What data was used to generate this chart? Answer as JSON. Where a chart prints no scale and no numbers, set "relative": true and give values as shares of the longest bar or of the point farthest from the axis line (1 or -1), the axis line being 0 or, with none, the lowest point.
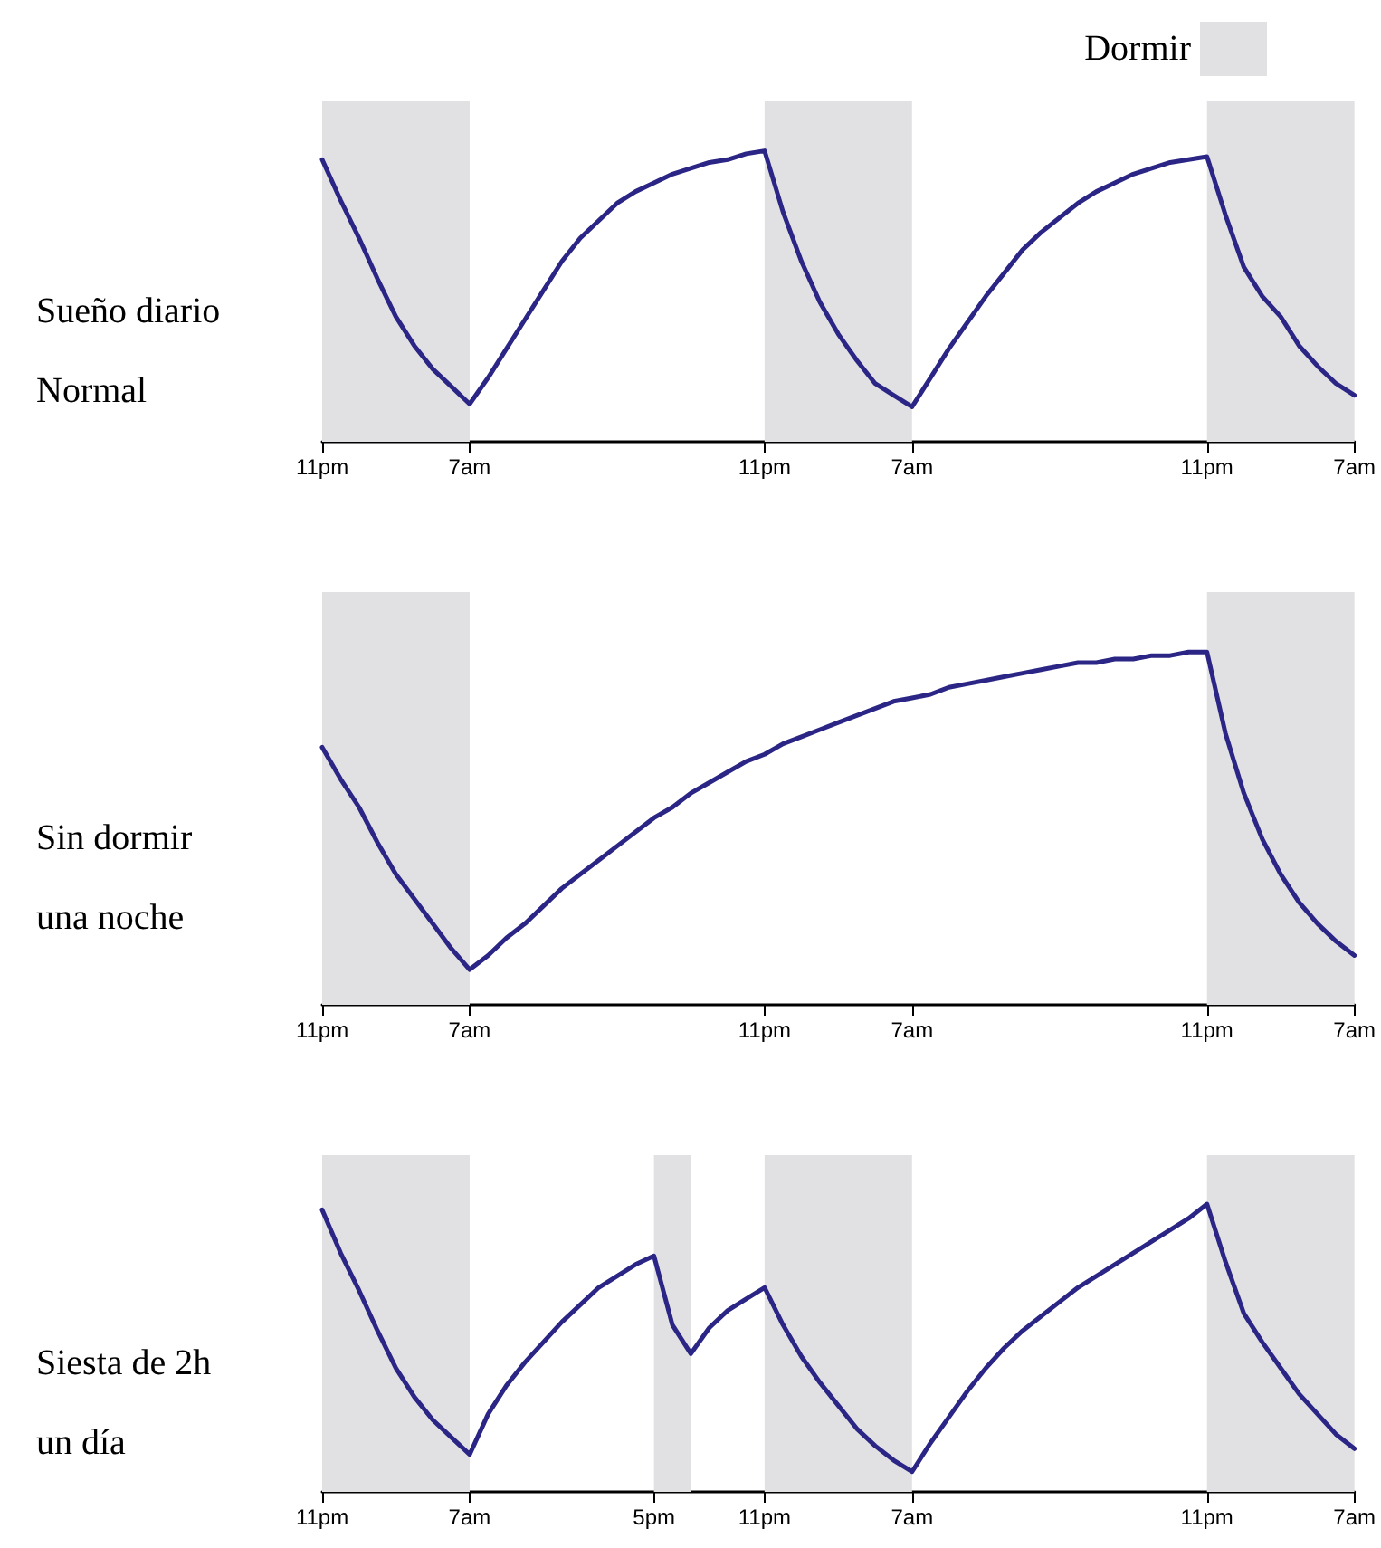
{
  "chart_data": [
    {
      "type": "line",
      "relative": true,
      "ylabel": "Sueño diario\nNormal",
      "categories": [
        "11pm",
        null,
        null,
        null,
        null,
        null,
        null,
        null,
        "7am",
        null,
        null,
        null,
        null,
        null,
        null,
        null,
        null,
        null,
        null,
        null,
        null,
        null,
        null,
        null,
        "11pm",
        null,
        null,
        null,
        null,
        null,
        null,
        null,
        "7am",
        null,
        null,
        null,
        null,
        null,
        null,
        null,
        null,
        null,
        null,
        null,
        null,
        null,
        null,
        null,
        "11pm",
        null,
        null,
        null,
        null,
        null,
        null,
        null,
        "7am"
      ],
      "bands": [
        {
          "axis": "x",
          "from": "11pm",
          "to": "7am",
          "label": "Dormir",
          "color": "#e1e1e3"
        }
      ],
      "series": [
        {
          "color": "#2b2685",
          "values": [
            0.97,
            0.83,
            0.7,
            0.56,
            0.43,
            0.33,
            0.25,
            0.19,
            0.13,
            0.22,
            0.32,
            0.42,
            0.52,
            0.62,
            0.7,
            0.76,
            0.82,
            0.86,
            0.89,
            0.92,
            0.94,
            0.96,
            0.97,
            0.99,
            1.0,
            0.79,
            0.62,
            0.48,
            0.37,
            0.28,
            0.2,
            0.16,
            0.12,
            0.22,
            0.32,
            0.41,
            0.5,
            0.58,
            0.66,
            0.72,
            0.77,
            0.82,
            0.86,
            0.89,
            0.92,
            0.94,
            0.96,
            0.97,
            0.98,
            0.78,
            0.6,
            0.5,
            0.43,
            0.33,
            0.26,
            0.2,
            0.16
          ]
        }
      ],
      "grid": false,
      "marker": "none",
      "line_style": "solid"
    },
    {
      "type": "line",
      "relative": true,
      "ylabel": "Sin dormir\nuna noche",
      "categories": [
        "11pm",
        null,
        null,
        null,
        null,
        null,
        null,
        null,
        "7am",
        null,
        null,
        null,
        null,
        null,
        null,
        null,
        null,
        null,
        null,
        null,
        null,
        null,
        null,
        null,
        "11pm",
        null,
        null,
        null,
        null,
        null,
        null,
        null,
        "7am",
        null,
        null,
        null,
        null,
        null,
        null,
        null,
        null,
        null,
        null,
        null,
        null,
        null,
        null,
        null,
        "11pm",
        null,
        null,
        null,
        null,
        null,
        null,
        null,
        "7am"
      ],
      "bands": [
        {
          "axis": "x",
          "from": "11pm",
          "to": "7am",
          "color": "#e1e1e3"
        }
      ],
      "series": [
        {
          "color": "#2b2685",
          "values": [
            0.73,
            0.64,
            0.56,
            0.46,
            0.37,
            0.3,
            0.23,
            0.16,
            0.1,
            0.14,
            0.19,
            0.23,
            0.28,
            0.33,
            0.37,
            0.41,
            0.45,
            0.49,
            0.53,
            0.56,
            0.6,
            0.63,
            0.66,
            0.69,
            0.71,
            0.74,
            0.76,
            0.78,
            0.8,
            0.82,
            0.84,
            0.86,
            0.87,
            0.88,
            0.9,
            0.91,
            0.92,
            0.93,
            0.94,
            0.95,
            0.96,
            0.97,
            0.97,
            0.98,
            0.98,
            0.99,
            0.99,
            1.0,
            1.0,
            0.77,
            0.6,
            0.47,
            0.37,
            0.29,
            0.23,
            0.18,
            0.14
          ]
        }
      ],
      "grid": false,
      "marker": "none",
      "line_style": "solid"
    },
    {
      "type": "line",
      "relative": true,
      "ylabel": "Siesta de 2h\nun día",
      "categories": [
        "11pm",
        null,
        null,
        null,
        null,
        null,
        null,
        null,
        "7am",
        null,
        null,
        null,
        null,
        null,
        null,
        null,
        null,
        null,
        "5pm",
        null,
        null,
        null,
        null,
        null,
        "11pm",
        null,
        null,
        null,
        null,
        null,
        null,
        null,
        "7am",
        null,
        null,
        null,
        null,
        null,
        null,
        null,
        null,
        null,
        null,
        null,
        null,
        null,
        null,
        null,
        "11pm",
        null,
        null,
        null,
        null,
        null,
        null,
        null,
        "7am"
      ],
      "bands": [
        {
          "axis": "x",
          "from": "11pm",
          "to": "7am",
          "color": "#e1e1e3"
        }
      ],
      "series": [
        {
          "color": "#2b2685",
          "values": [
            0.98,
            0.83,
            0.7,
            0.56,
            0.43,
            0.33,
            0.25,
            0.19,
            0.13,
            0.27,
            0.37,
            0.45,
            0.52,
            0.59,
            0.65,
            0.71,
            0.75,
            0.79,
            0.82,
            0.58,
            0.48,
            0.57,
            0.63,
            0.67,
            0.71,
            0.58,
            0.47,
            0.38,
            0.3,
            0.22,
            0.16,
            0.11,
            0.07,
            0.17,
            0.26,
            0.35,
            0.43,
            0.5,
            0.56,
            0.61,
            0.66,
            0.71,
            0.75,
            0.79,
            0.83,
            0.87,
            0.91,
            0.95,
            1.0,
            0.8,
            0.62,
            0.52,
            0.43,
            0.34,
            0.27,
            0.2,
            0.15
          ]
        }
      ],
      "grid": false,
      "marker": "none",
      "line_style": "solid"
    }
  ]
}
